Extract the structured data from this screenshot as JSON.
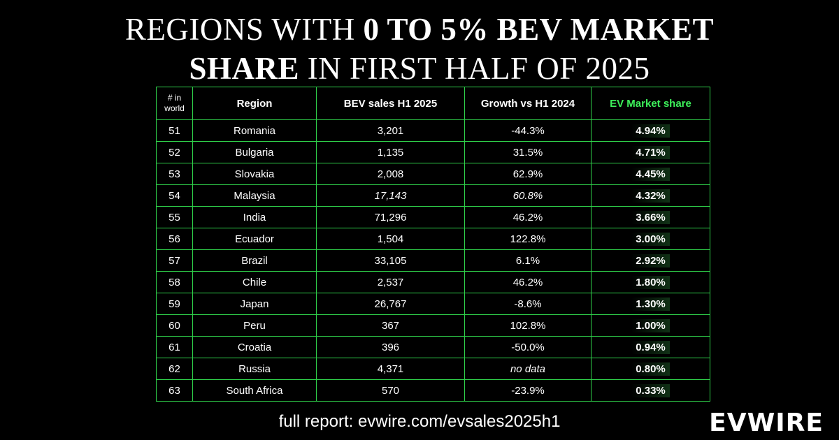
{
  "title": {
    "line1_prefix": "REGIONS WITH ",
    "line1_bold": "0 to 5% BEV MARKET",
    "line2_bold": "SHARE",
    "line2_suffix": " IN FIRST HALF OF 2025"
  },
  "table": {
    "headers": {
      "rank": "# in world",
      "region": "Region",
      "sales": "BEV sales H1 2025",
      "growth": "Growth vs H1 2024",
      "share": "EV Market share"
    },
    "rows": [
      {
        "rank": "51",
        "region": "Romania",
        "sales": "3,201",
        "growth": "-44.3%",
        "share": "4.94%",
        "italic": false
      },
      {
        "rank": "52",
        "region": "Bulgaria",
        "sales": "1,135",
        "growth": "31.5%",
        "share": "4.71%",
        "italic": false
      },
      {
        "rank": "53",
        "region": "Slovakia",
        "sales": "2,008",
        "growth": "62.9%",
        "share": "4.45%",
        "italic": false
      },
      {
        "rank": "54",
        "region": "Malaysia",
        "sales": "17,143",
        "growth": "60.8%",
        "share": "4.32%",
        "italic": true
      },
      {
        "rank": "55",
        "region": "India",
        "sales": "71,296",
        "growth": "46.2%",
        "share": "3.66%",
        "italic": false
      },
      {
        "rank": "56",
        "region": "Ecuador",
        "sales": "1,504",
        "growth": "122.8%",
        "share": "3.00%",
        "italic": false
      },
      {
        "rank": "57",
        "region": "Brazil",
        "sales": "33,105",
        "growth": "6.1%",
        "share": "2.92%",
        "italic": false
      },
      {
        "rank": "58",
        "region": "Chile",
        "sales": "2,537",
        "growth": "46.2%",
        "share": "1.80%",
        "italic": false
      },
      {
        "rank": "59",
        "region": "Japan",
        "sales": "26,767",
        "growth": "-8.6%",
        "share": "1.30%",
        "italic": false
      },
      {
        "rank": "60",
        "region": "Peru",
        "sales": "367",
        "growth": "102.8%",
        "share": "1.00%",
        "italic": false
      },
      {
        "rank": "61",
        "region": "Croatia",
        "sales": "396",
        "growth": "-50.0%",
        "share": "0.94%",
        "italic": false
      },
      {
        "rank": "62",
        "region": "Russia",
        "sales": "4,371",
        "growth": "no data",
        "share": "0.80%",
        "italic": false,
        "growth_italic": true
      },
      {
        "rank": "63",
        "region": "South Africa",
        "sales": "570",
        "growth": "-23.9%",
        "share": "0.33%",
        "italic": false
      }
    ]
  },
  "footer": "full report: evwire.com/evsales2025h1",
  "logo": "EVWIRE",
  "colors": {
    "background": "#000000",
    "accent_green": "#3df05a",
    "border_green": "#2fd14a"
  }
}
